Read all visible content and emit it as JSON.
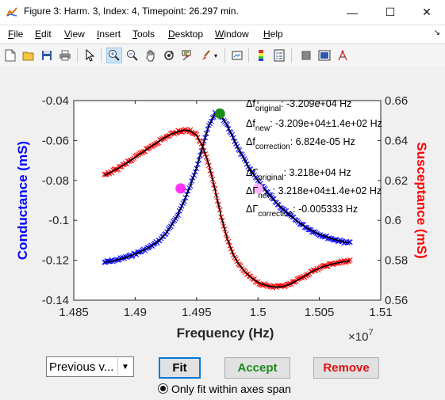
{
  "window": {
    "title": "Figure 3: Harm. 3, Index: 4, Timepoint: 26.297 min.",
    "minimize": "—",
    "maximize": "☐",
    "close": "✕"
  },
  "menu": {
    "items": [
      "File",
      "Edit",
      "View",
      "Insert",
      "Tools",
      "Desktop",
      "Window",
      "Help"
    ],
    "underline": [
      "F",
      "E",
      "V",
      "I",
      "T",
      "D",
      "W",
      "H"
    ]
  },
  "toolbar": {
    "icons": [
      "new-figure-icon",
      "open-file-icon",
      "save-icon",
      "print-icon",
      "edit-plot-arrow-icon",
      "zoom-in-icon",
      "zoom-out-icon",
      "pan-hand-icon",
      "rotate-3d-icon",
      "data-cursor-icon",
      "brush-icon",
      "link-plot-icon",
      "colorbar-icon",
      "legend-icon",
      "hide-plot-tools-icon",
      "show-plot-tools-icon",
      "plot-browser-icon"
    ]
  },
  "colors": {
    "conductance": "#0000ff",
    "susceptance": "#ff0000",
    "fit_line": "#000000",
    "marker_green": "#1a8a1a",
    "marker_magenta": "#ff33ff",
    "marker_pink": "#ffb0ff",
    "accept": "#1a8a1a",
    "remove": "#e01010"
  },
  "chart_data": {
    "type": "line",
    "xlabel": "Frequency (Hz)",
    "ylabel_left": "Conductance (mS)",
    "ylabel_right": "Susceptance (mS)",
    "x_exponent": "×10^7",
    "x_exponent_base": "×10",
    "x_exponent_power": "7",
    "xlim": [
      14850000.0,
      15100000.0
    ],
    "ylim_left": [
      -0.14,
      -0.04
    ],
    "ylim_right": [
      0.56,
      0.66
    ],
    "x_ticks": [
      14850000.0,
      14900000.0,
      14950000.0,
      15000000.0,
      15050000.0,
      15100000.0
    ],
    "x_tick_labels": [
      "1.485",
      "1.49",
      "1.495",
      "1.5",
      "1.505",
      "1.51"
    ],
    "y_left_ticks": [
      -0.14,
      -0.12,
      -0.1,
      -0.08,
      -0.06,
      -0.04
    ],
    "y_left_tick_labels": [
      "-0.14",
      "-0.12",
      "-0.1",
      "-0.08",
      "-0.06",
      "-0.04"
    ],
    "y_right_ticks": [
      0.56,
      0.58,
      0.6,
      0.62,
      0.64,
      0.66
    ],
    "y_right_tick_labels": [
      "0.56",
      "0.58",
      "0.6",
      "0.62",
      "0.64",
      "0.66"
    ],
    "series": [
      {
        "name": "Conductance",
        "axis": "left",
        "marker": "x",
        "x": [
          14875000.0,
          14880000.0,
          14885000.0,
          14890000.0,
          14895000.0,
          14900000.0,
          14905000.0,
          14910000.0,
          14915000.0,
          14920000.0,
          14925000.0,
          14930000.0,
          14935000.0,
          14940000.0,
          14945000.0,
          14950000.0,
          14955000.0,
          14960000.0,
          14965000.0,
          14970000.0,
          14975000.0,
          14980000.0,
          14985000.0,
          14990000.0,
          14995000.0,
          15000000.0,
          15005000.0,
          15010000.0,
          15015000.0,
          15020000.0,
          15025000.0,
          15030000.0,
          15035000.0,
          15040000.0,
          15045000.0,
          15050000.0,
          15055000.0,
          15060000.0,
          15065000.0,
          15070000.0,
          15075000.0
        ],
        "y": [
          -0.121,
          -0.1205,
          -0.1198,
          -0.119,
          -0.118,
          -0.1168,
          -0.1155,
          -0.114,
          -0.1122,
          -0.1098,
          -0.1065,
          -0.1022,
          -0.0968,
          -0.0902,
          -0.0825,
          -0.0735,
          -0.063,
          -0.0525,
          -0.0465,
          -0.0475,
          -0.0525,
          -0.059,
          -0.0652,
          -0.0708,
          -0.0758,
          -0.0802,
          -0.0842,
          -0.0878,
          -0.0912,
          -0.0942,
          -0.097,
          -0.0995,
          -0.1018,
          -0.1038,
          -0.1055,
          -0.107,
          -0.1082,
          -0.1092,
          -0.11,
          -0.1108,
          -0.1113
        ]
      },
      {
        "name": "Susceptance",
        "axis": "right",
        "marker": "x",
        "x": [
          14875000.0,
          14880000.0,
          14885000.0,
          14890000.0,
          14895000.0,
          14900000.0,
          14905000.0,
          14910000.0,
          14915000.0,
          14920000.0,
          14925000.0,
          14930000.0,
          14935000.0,
          14940000.0,
          14945000.0,
          14950000.0,
          14955000.0,
          14960000.0,
          14965000.0,
          14970000.0,
          14975000.0,
          14980000.0,
          14985000.0,
          14990000.0,
          14995000.0,
          15000000.0,
          15005000.0,
          15010000.0,
          15015000.0,
          15020000.0,
          15025000.0,
          15030000.0,
          15035000.0,
          15040000.0,
          15045000.0,
          15050000.0,
          15055000.0,
          15060000.0,
          15065000.0,
          15070000.0,
          15075000.0
        ],
        "y": [
          0.6225,
          0.624,
          0.6257,
          0.6275,
          0.6295,
          0.6315,
          0.6337,
          0.6358,
          0.6379,
          0.6399,
          0.6417,
          0.6433,
          0.6445,
          0.6452,
          0.6448,
          0.6425,
          0.637,
          0.628,
          0.6155,
          0.602,
          0.5908,
          0.5828,
          0.5775,
          0.5738,
          0.571,
          0.569,
          0.5677,
          0.5669,
          0.5666,
          0.5668,
          0.5677,
          0.5692,
          0.571,
          0.5728,
          0.5746,
          0.576,
          0.5772,
          0.578,
          0.5787,
          0.5793,
          0.5798
        ]
      }
    ],
    "markers": [
      {
        "name": "peak",
        "color": "green",
        "x": 14969000.0,
        "y": -0.0465,
        "axis": "left"
      },
      {
        "name": "left-half",
        "color": "magenta",
        "x": 14937000.0,
        "y": -0.084,
        "axis": "left"
      },
      {
        "name": "right-half",
        "color": "pink",
        "x": 15000000.0,
        "y": -0.084,
        "axis": "left"
      }
    ],
    "annotations": [
      {
        "symbol": "Δf",
        "sub": "original",
        "value": ": -3.209e+04 Hz"
      },
      {
        "symbol": "Δf",
        "sub": "new",
        "value": ": -3.209e+04±1.4e+02 Hz"
      },
      {
        "symbol": "Δf",
        "sub": "correction",
        "value": ": 6.824e-05 Hz"
      },
      {
        "symbol": "ΔΓ",
        "sub": "original",
        "value": ": 3.218e+04 Hz"
      },
      {
        "symbol": "ΔΓ",
        "sub": "new",
        "value": ": 3.218e+04±1.4e+02 Hz"
      },
      {
        "symbol": "ΔΓ",
        "sub": "correction",
        "value": ": -0.005333 Hz"
      }
    ]
  },
  "controls": {
    "popup_value": "Previous v...",
    "fit_label": "Fit",
    "accept_label": "Accept",
    "remove_label": "Remove",
    "radio_label": "Only fit within axes span",
    "radio_checked": true
  }
}
